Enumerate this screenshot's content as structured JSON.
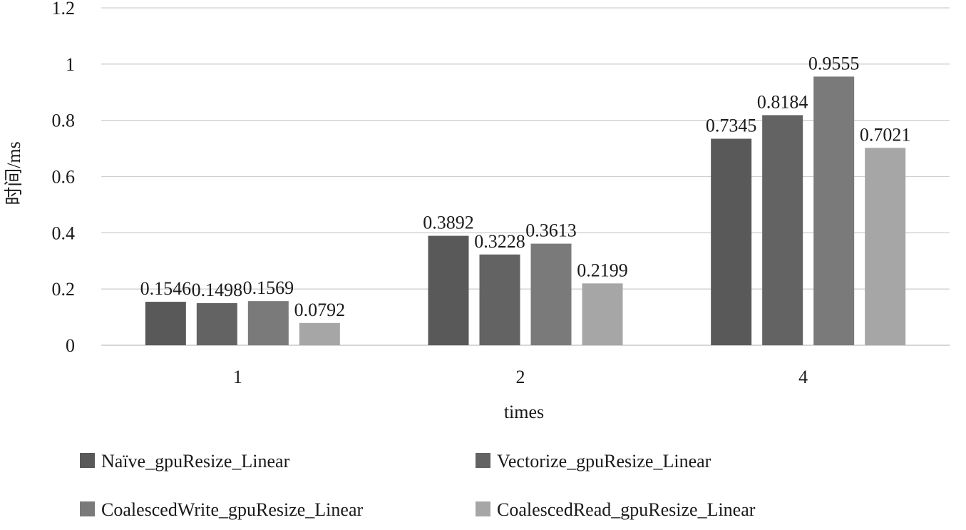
{
  "chart_data": {
    "type": "bar",
    "categories": [
      "1",
      "2",
      "4"
    ],
    "series": [
      {
        "name": "Naïve_gpuResize_Linear",
        "values": [
          0.1546,
          0.3892,
          0.7345
        ],
        "labels": [
          "0.1546",
          "0.3892",
          "0.7345"
        ],
        "color": "#595959"
      },
      {
        "name": "Vectorize_gpuResize_Linear",
        "values": [
          0.1498,
          0.3228,
          0.8184
        ],
        "labels": [
          "0.1498",
          "0.3228",
          "0.8184"
        ],
        "color": "#636363"
      },
      {
        "name": "CoalescedWrite_gpuResize_Linear",
        "values": [
          0.1569,
          0.3613,
          0.9555
        ],
        "labels": [
          "0.1569",
          "0.3613",
          "0.9555"
        ],
        "color": "#7a7a7a"
      },
      {
        "name": "CoalescedRead_gpuResize_Linear",
        "values": [
          0.0792,
          0.2199,
          0.7021
        ],
        "labels": [
          "0.0792",
          "0.2199",
          "0.7021"
        ],
        "color": "#a6a6a6"
      }
    ],
    "title": "",
    "xlabel": "times",
    "ylabel": "时间/ms",
    "ylim": [
      0,
      1.2
    ],
    "yticks": [
      "0",
      "0.2",
      "0.4",
      "0.6",
      "0.8",
      "1",
      "1.2"
    ],
    "grid": true,
    "legend_position": "bottom"
  }
}
